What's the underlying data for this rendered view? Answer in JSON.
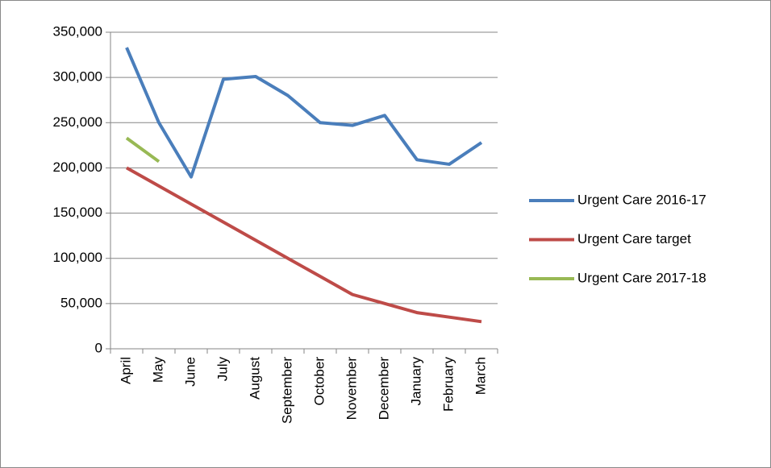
{
  "chart_data": {
    "type": "line",
    "categories": [
      "April",
      "May",
      "June",
      "July",
      "August",
      "September",
      "October",
      "November",
      "December",
      "January",
      "February",
      "March"
    ],
    "series": [
      {
        "name": "Urgent Care 2016-17",
        "color": "#4a7ebb",
        "values": [
          333000,
          250000,
          190000,
          298000,
          301000,
          280000,
          250000,
          247000,
          258000,
          209000,
          204000,
          228000
        ]
      },
      {
        "name": "Urgent Care target",
        "color": "#be4b48",
        "values": [
          200000,
          180000,
          160000,
          140000,
          120000,
          100000,
          80000,
          60000,
          50000,
          40000,
          35000,
          30000
        ]
      },
      {
        "name": "Urgent Care 2017-18",
        "color": "#98b954",
        "values": [
          233000,
          207000,
          null,
          null,
          null,
          null,
          null,
          null,
          null,
          null,
          null,
          null
        ]
      }
    ],
    "ylim": [
      0,
      350000
    ],
    "yticks": [
      0,
      {
        "value": 50000,
        "label": "50,000"
      },
      {
        "value": 100000,
        "label": "100,000"
      },
      {
        "value": 150000,
        "label": "150,000"
      },
      {
        "value": 200000,
        "label": "200,000"
      },
      {
        "value": 250000,
        "label": "250,000"
      },
      {
        "value": 300000,
        "label": "300,000"
      },
      {
        "value": 350000,
        "label": "350,000"
      }
    ],
    "grid": true,
    "legend": "right"
  }
}
